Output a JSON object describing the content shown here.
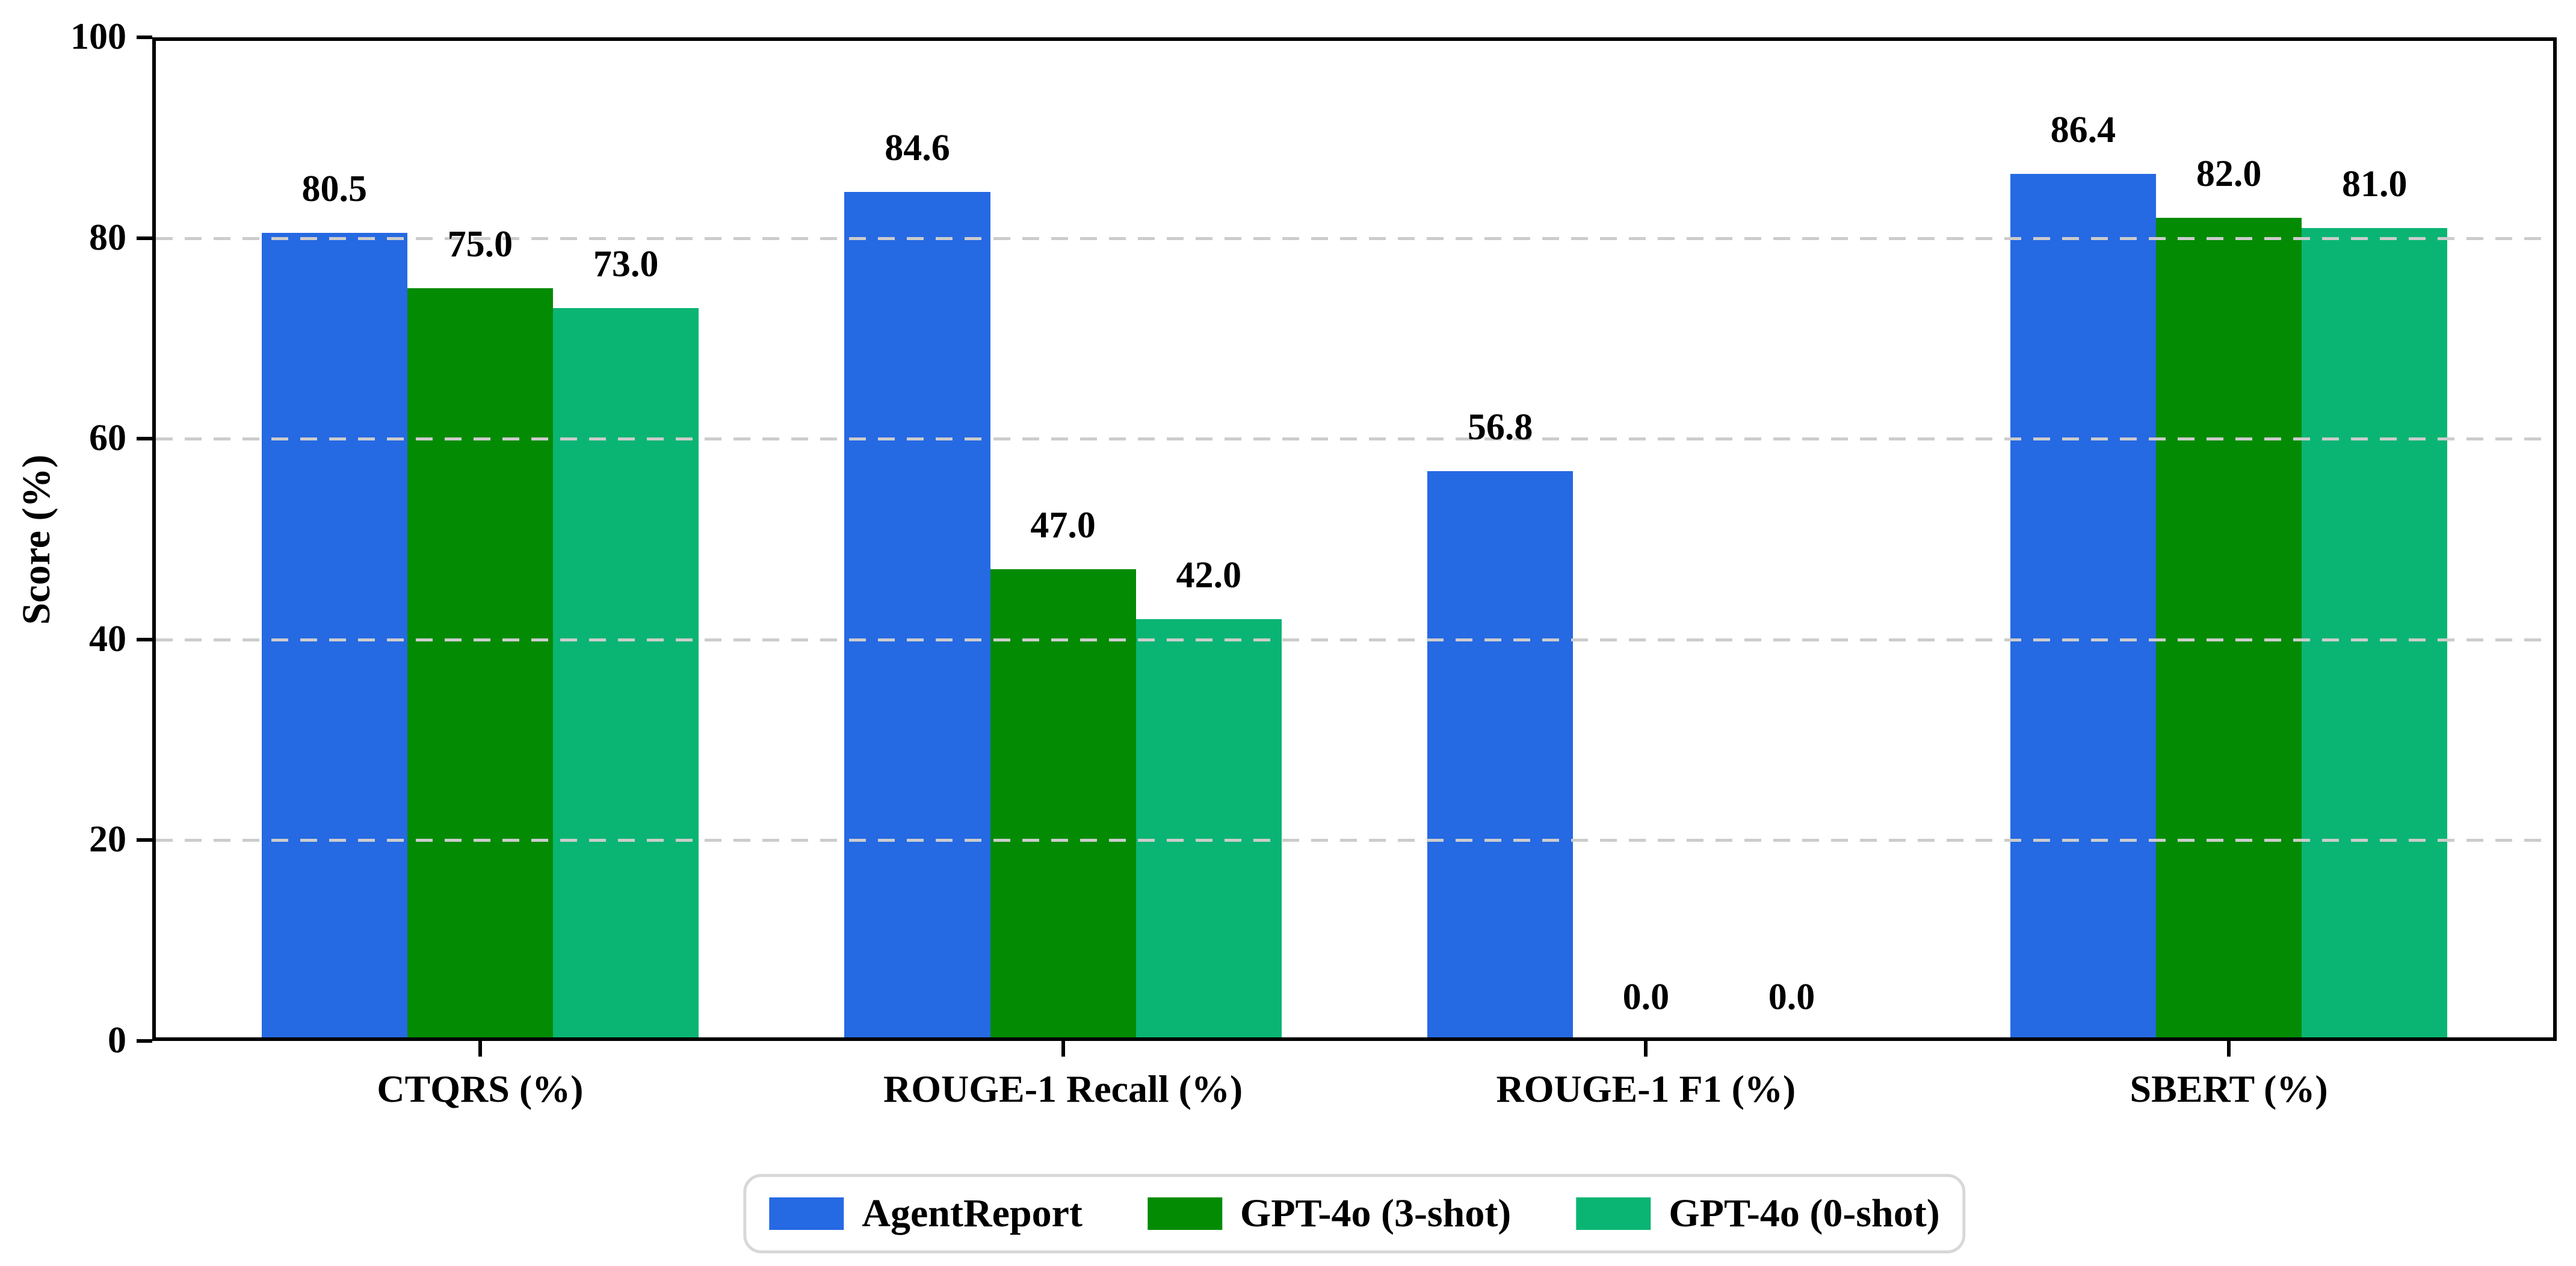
{
  "figure": {
    "background": "#ffffff",
    "axis_color": "#000000",
    "grid_color": "#cccccc",
    "text_color": "#000000",
    "legend_border_color": "#d8d8d8"
  },
  "chart_data": {
    "type": "bar",
    "title": "",
    "xlabel": "",
    "ylabel": "Score (%)",
    "ylim": [
      0,
      100
    ],
    "yticks": [
      0,
      20,
      40,
      60,
      80,
      100
    ],
    "grid": "horizontal-dashed",
    "legend_position": "bottom-center",
    "value_label_decimals": 1,
    "categories": [
      "CTQRS (%)",
      "ROUGE-1 Recall (%)",
      "ROUGE-1 F1 (%)",
      "SBERT (%)"
    ],
    "series": [
      {
        "name": "AgentReport",
        "color": "#2569e3",
        "values": [
          80.5,
          84.6,
          56.8,
          86.4
        ]
      },
      {
        "name": "GPT-4o (3-shot)",
        "color": "#048b04",
        "values": [
          75.0,
          47.0,
          0.0,
          82.0
        ]
      },
      {
        "name": "GPT-4o (0-shot)",
        "color": "#0ab573",
        "values": [
          73.0,
          42.0,
          0.0,
          81.0
        ]
      }
    ]
  }
}
